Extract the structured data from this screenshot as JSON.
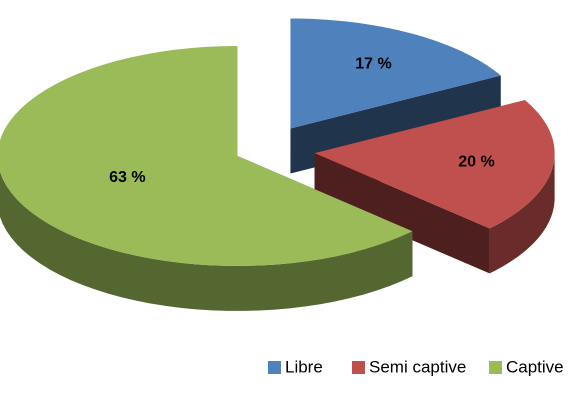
{
  "chart_data": {
    "type": "pie3d",
    "categories": [
      "Libre",
      "Semi captive",
      "Captive"
    ],
    "values": [
      17,
      20,
      63
    ],
    "value_labels": [
      "17 %",
      "20 %",
      "63 %"
    ],
    "colors": [
      "#4F81BD",
      "#C0504D",
      "#9BBB59"
    ],
    "legend": "bottom"
  }
}
